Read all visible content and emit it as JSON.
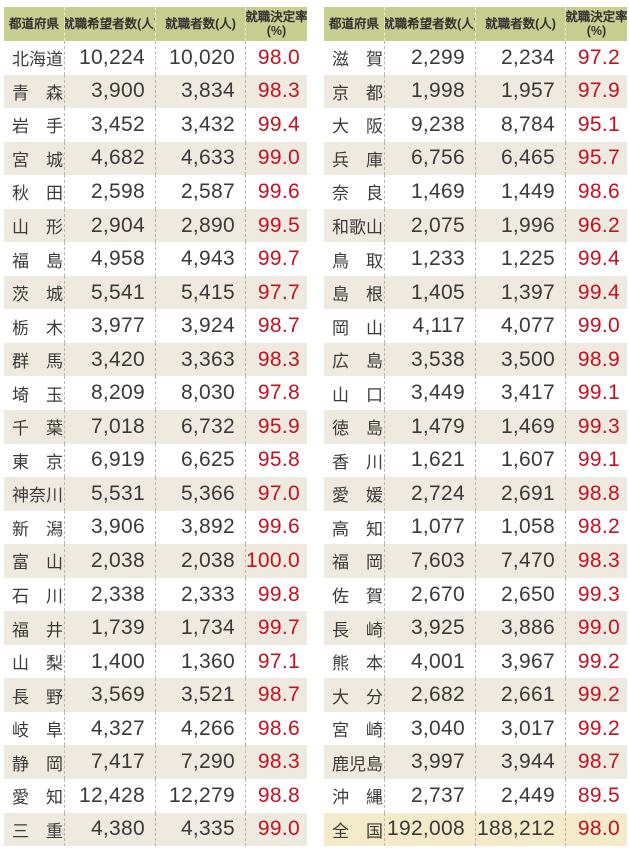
{
  "colors": {
    "header_bg": "#c6ce90",
    "stripe_bg": "#eeeadf",
    "total_row_bg": "#f4ebca",
    "text": "#3c3a39",
    "rate_red": "#c7101f",
    "dashed_divider": "#b9b6b0",
    "page_bg": "#ffffff"
  },
  "tables": {
    "headers": {
      "prefecture": "都道府県",
      "applicants": "就職希望者数(人)",
      "employed": "就職者数(人)",
      "rate_line1": "就職決定率",
      "rate_line2": "(%)"
    },
    "left": {
      "rows": [
        {
          "name": "北海道",
          "applicants": "10,224",
          "employed": "10,020",
          "rate": "98.0"
        },
        {
          "name": "青　森",
          "applicants": "3,900",
          "employed": "3,834",
          "rate": "98.3"
        },
        {
          "name": "岩　手",
          "applicants": "3,452",
          "employed": "3,432",
          "rate": "99.4"
        },
        {
          "name": "宮　城",
          "applicants": "4,682",
          "employed": "4,633",
          "rate": "99.0"
        },
        {
          "name": "秋　田",
          "applicants": "2,598",
          "employed": "2,587",
          "rate": "99.6"
        },
        {
          "name": "山　形",
          "applicants": "2,904",
          "employed": "2,890",
          "rate": "99.5"
        },
        {
          "name": "福　島",
          "applicants": "4,958",
          "employed": "4,943",
          "rate": "99.7"
        },
        {
          "name": "茨　城",
          "applicants": "5,541",
          "employed": "5,415",
          "rate": "97.7"
        },
        {
          "name": "栃　木",
          "applicants": "3,977",
          "employed": "3,924",
          "rate": "98.7"
        },
        {
          "name": "群　馬",
          "applicants": "3,420",
          "employed": "3,363",
          "rate": "98.3"
        },
        {
          "name": "埼　玉",
          "applicants": "8,209",
          "employed": "8,030",
          "rate": "97.8"
        },
        {
          "name": "千　葉",
          "applicants": "7,018",
          "employed": "6,732",
          "rate": "95.9"
        },
        {
          "name": "東　京",
          "applicants": "6,919",
          "employed": "6,625",
          "rate": "95.8"
        },
        {
          "name": "神奈川",
          "applicants": "5,531",
          "employed": "5,366",
          "rate": "97.0"
        },
        {
          "name": "新　潟",
          "applicants": "3,906",
          "employed": "3,892",
          "rate": "99.6"
        },
        {
          "name": "富　山",
          "applicants": "2,038",
          "employed": "2,038",
          "rate": "100.0"
        },
        {
          "name": "石　川",
          "applicants": "2,338",
          "employed": "2,333",
          "rate": "99.8"
        },
        {
          "name": "福　井",
          "applicants": "1,739",
          "employed": "1,734",
          "rate": "99.7"
        },
        {
          "name": "山　梨",
          "applicants": "1,400",
          "employed": "1,360",
          "rate": "97.1"
        },
        {
          "name": "長　野",
          "applicants": "3,569",
          "employed": "3,521",
          "rate": "98.7"
        },
        {
          "name": "岐　阜",
          "applicants": "4,327",
          "employed": "4,266",
          "rate": "98.6"
        },
        {
          "name": "静　岡",
          "applicants": "7,417",
          "employed": "7,290",
          "rate": "98.3"
        },
        {
          "name": "愛　知",
          "applicants": "12,428",
          "employed": "12,279",
          "rate": "98.8"
        },
        {
          "name": "三　重",
          "applicants": "4,380",
          "employed": "4,335",
          "rate": "99.0"
        }
      ]
    },
    "right": {
      "rows": [
        {
          "name": "滋　賀",
          "applicants": "2,299",
          "employed": "2,234",
          "rate": "97.2"
        },
        {
          "name": "京　都",
          "applicants": "1,998",
          "employed": "1,957",
          "rate": "97.9"
        },
        {
          "name": "大　阪",
          "applicants": "9,238",
          "employed": "8,784",
          "rate": "95.1"
        },
        {
          "name": "兵　庫",
          "applicants": "6,756",
          "employed": "6,465",
          "rate": "95.7"
        },
        {
          "name": "奈　良",
          "applicants": "1,469",
          "employed": "1,449",
          "rate": "98.6"
        },
        {
          "name": "和歌山",
          "applicants": "2,075",
          "employed": "1,996",
          "rate": "96.2"
        },
        {
          "name": "鳥　取",
          "applicants": "1,233",
          "employed": "1,225",
          "rate": "99.4"
        },
        {
          "name": "島　根",
          "applicants": "1,405",
          "employed": "1,397",
          "rate": "99.4"
        },
        {
          "name": "岡　山",
          "applicants": "4,117",
          "employed": "4,077",
          "rate": "99.0"
        },
        {
          "name": "広　島",
          "applicants": "3,538",
          "employed": "3,500",
          "rate": "98.9"
        },
        {
          "name": "山　口",
          "applicants": "3,449",
          "employed": "3,417",
          "rate": "99.1"
        },
        {
          "name": "徳　島",
          "applicants": "1,479",
          "employed": "1,469",
          "rate": "99.3"
        },
        {
          "name": "香　川",
          "applicants": "1,621",
          "employed": "1,607",
          "rate": "99.1"
        },
        {
          "name": "愛　媛",
          "applicants": "2,724",
          "employed": "2,691",
          "rate": "98.8"
        },
        {
          "name": "高　知",
          "applicants": "1,077",
          "employed": "1,058",
          "rate": "98.2"
        },
        {
          "name": "福　岡",
          "applicants": "7,603",
          "employed": "7,470",
          "rate": "98.3"
        },
        {
          "name": "佐　賀",
          "applicants": "2,670",
          "employed": "2,650",
          "rate": "99.3"
        },
        {
          "name": "長　崎",
          "applicants": "3,925",
          "employed": "3,886",
          "rate": "99.0"
        },
        {
          "name": "熊　本",
          "applicants": "4,001",
          "employed": "3,967",
          "rate": "99.2"
        },
        {
          "name": "大　分",
          "applicants": "2,682",
          "employed": "2,661",
          "rate": "99.2"
        },
        {
          "name": "宮　崎",
          "applicants": "3,040",
          "employed": "3,017",
          "rate": "99.2"
        },
        {
          "name": "鹿児島",
          "applicants": "3,997",
          "employed": "3,944",
          "rate": "98.7"
        },
        {
          "name": "沖　縄",
          "applicants": "2,737",
          "employed": "2,449",
          "rate": "89.5"
        },
        {
          "name": "全　国",
          "applicants": "192,008",
          "employed": "188,212",
          "rate": "98.0",
          "is_total": true
        }
      ]
    }
  }
}
